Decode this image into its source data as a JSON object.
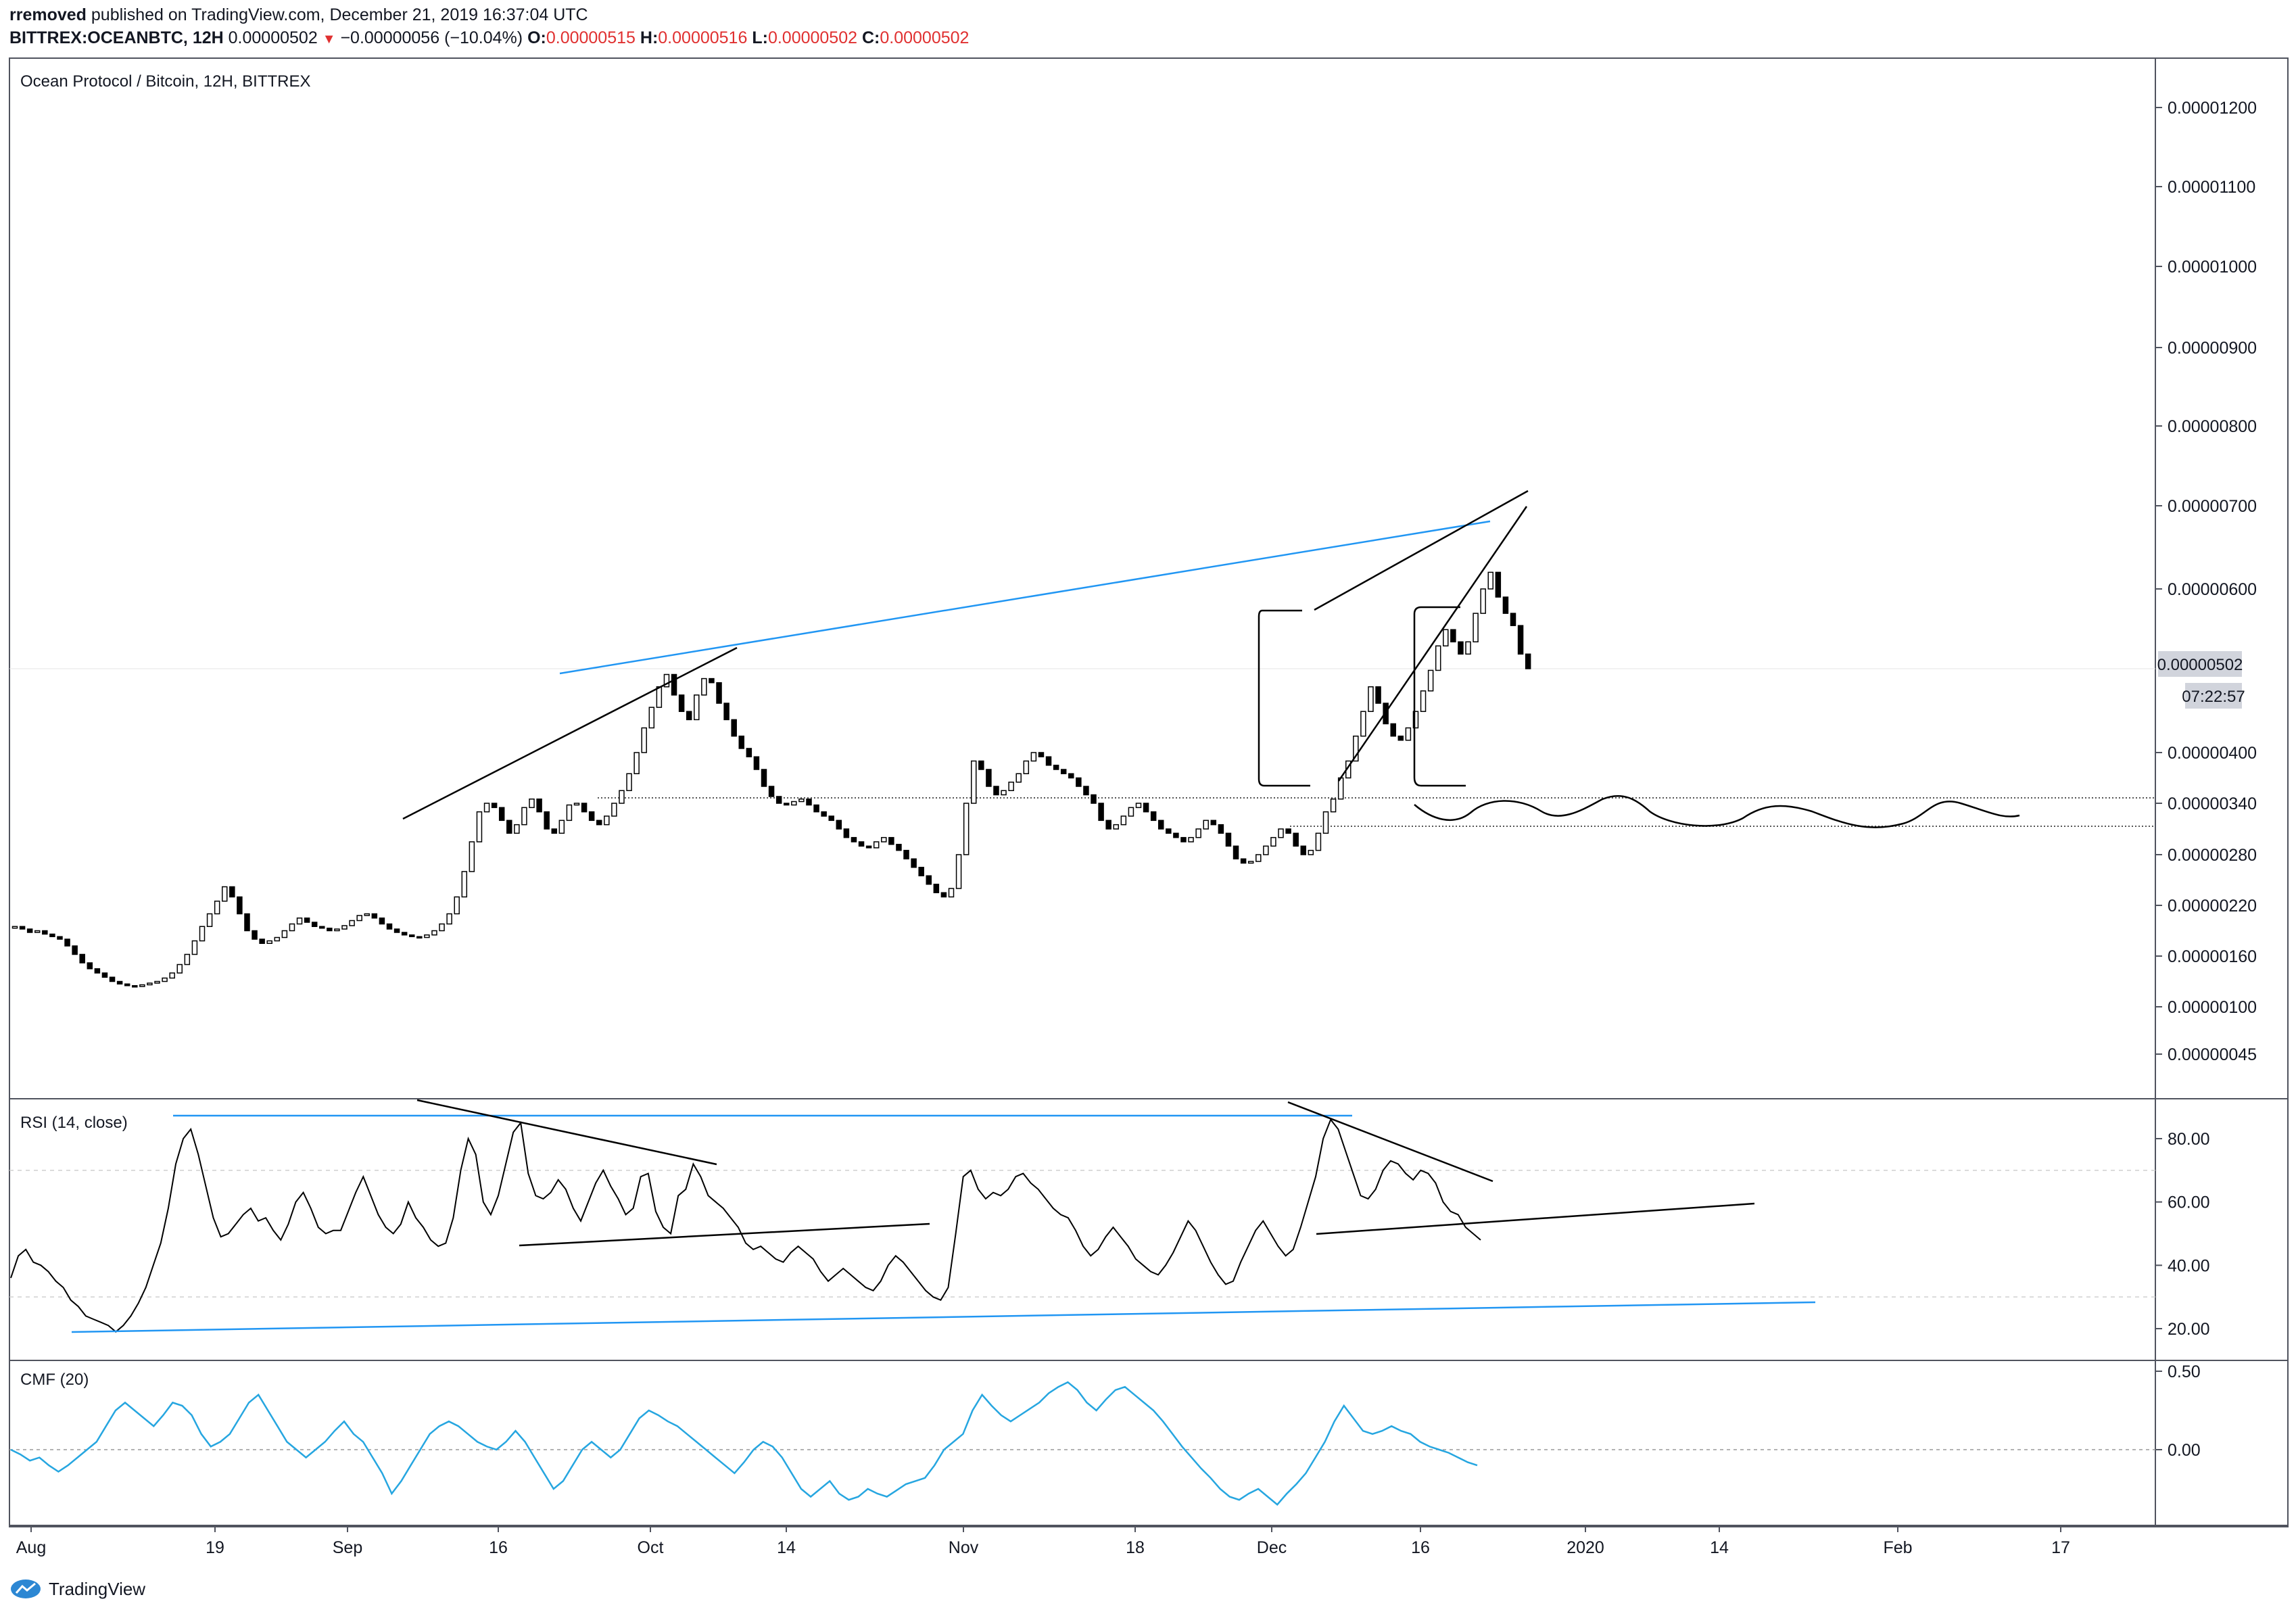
{
  "header": {
    "author": "rremoved",
    "published": "published on TradingView.com, December 21, 2019 16:37:04 UTC",
    "symbol": "BITTREX:OCEANBTC, 12H",
    "last": "0.00000502",
    "change": "−0.00000056 (−10.04%)",
    "o_label": "O:",
    "o_value": "0.00000515",
    "h_label": "H:",
    "h_value": "0.00000516",
    "l_label": "L:",
    "l_value": "0.00000502",
    "c_label": "C:",
    "c_value": "0.00000502"
  },
  "branding": {
    "name": "TradingView"
  },
  "colors": {
    "accent_line": "#2196f3",
    "cmf_line": "#26a6e0",
    "price_badge": "#d1d4dc",
    "change_down": "#e03030"
  },
  "chart_data": [
    {
      "type": "candlestick",
      "title": "Ocean Protocol / Bitcoin, 12H, BITTREX",
      "scale": "log",
      "y_ticks": [
        "0.00001200",
        "0.00001100",
        "0.00001000",
        "0.00000900",
        "0.00000800",
        "0.00000700",
        "0.00000600",
        "0.00000502",
        "0.00000400",
        "0.00000340",
        "0.00000280",
        "0.00000220",
        "0.00000160",
        "0.00000100",
        "0.00000045"
      ],
      "last_price": "0.00000502",
      "countdown": "07:22:57",
      "x_ticks": [
        "Aug",
        "19",
        "Sep",
        "16",
        "Oct",
        "14",
        "Nov",
        "18",
        "Dec",
        "16",
        "2020",
        "14",
        "Feb",
        "17"
      ],
      "close_series": [
        1.95,
        1.92,
        1.88,
        1.9,
        1.86,
        1.83,
        1.8,
        1.72,
        1.62,
        1.52,
        1.45,
        1.4,
        1.35,
        1.3,
        1.27,
        1.25,
        1.24,
        1.26,
        1.28,
        1.3,
        1.34,
        1.4,
        1.5,
        1.62,
        1.78,
        1.95,
        2.1,
        2.25,
        2.42,
        2.3,
        2.1,
        1.9,
        1.8,
        1.75,
        1.78,
        1.82,
        1.9,
        1.98,
        2.05,
        2.0,
        1.95,
        1.93,
        1.9,
        1.92,
        1.96,
        2.02,
        2.08,
        2.1,
        2.05,
        1.98,
        1.92,
        1.88,
        1.85,
        1.83,
        1.82,
        1.85,
        1.9,
        1.98,
        2.1,
        2.3,
        2.6,
        2.95,
        3.3,
        3.4,
        3.35,
        3.2,
        3.05,
        3.15,
        3.35,
        3.45,
        3.3,
        3.1,
        3.05,
        3.2,
        3.38,
        3.4,
        3.3,
        3.2,
        3.15,
        3.25,
        3.4,
        3.55,
        3.75,
        4.0,
        4.3,
        4.55,
        4.8,
        4.95,
        4.7,
        4.5,
        4.4,
        4.7,
        4.9,
        4.85,
        4.6,
        4.4,
        4.2,
        4.05,
        3.95,
        3.8,
        3.6,
        3.48,
        3.4,
        3.38,
        3.42,
        3.45,
        3.38,
        3.3,
        3.25,
        3.2,
        3.1,
        3.0,
        2.95,
        2.9,
        2.88,
        2.95,
        3.0,
        2.92,
        2.85,
        2.75,
        2.65,
        2.55,
        2.45,
        2.35,
        2.3,
        2.4,
        2.8,
        3.4,
        3.9,
        3.8,
        3.6,
        3.5,
        3.55,
        3.65,
        3.75,
        3.9,
        4.0,
        3.95,
        3.85,
        3.8,
        3.75,
        3.7,
        3.6,
        3.5,
        3.4,
        3.2,
        3.1,
        3.15,
        3.25,
        3.35,
        3.4,
        3.3,
        3.2,
        3.1,
        3.05,
        3.0,
        2.95,
        3.0,
        3.1,
        3.2,
        3.15,
        3.05,
        2.9,
        2.75,
        2.7,
        2.72,
        2.8,
        2.9,
        3.0,
        3.1,
        3.05,
        2.9,
        2.8,
        2.85,
        3.05,
        3.3,
        3.45,
        3.7,
        3.9,
        4.2,
        4.5,
        4.8,
        4.6,
        4.35,
        4.2,
        4.15,
        4.3,
        4.5,
        4.75,
        5.0,
        5.3,
        5.5,
        5.35,
        5.2,
        5.35,
        5.7,
        6.0,
        6.2,
        5.9,
        5.7,
        5.55,
        5.2,
        5.02
      ],
      "rsi": {
        "label": "RSI (14, close)",
        "y_ticks": [
          "80.00",
          "60.00",
          "40.00",
          "20.00"
        ],
        "overbought": 70,
        "oversold": 30,
        "values": [
          36,
          43,
          45,
          41,
          40,
          38,
          35,
          33,
          29,
          27,
          24,
          23,
          22,
          21,
          19,
          21,
          24,
          28,
          33,
          40,
          47,
          58,
          72,
          80,
          83,
          75,
          65,
          55,
          49,
          50,
          53,
          56,
          58,
          54,
          55,
          51,
          48,
          53,
          60,
          63,
          58,
          52,
          50,
          51,
          51,
          57,
          63,
          68,
          62,
          56,
          52,
          50,
          53,
          60,
          55,
          52,
          48,
          46,
          47,
          55,
          70,
          80,
          75,
          60,
          56,
          62,
          72,
          82,
          85,
          69,
          62,
          61,
          63,
          67,
          64,
          58,
          54,
          60,
          66,
          70,
          65,
          61,
          56,
          58,
          68,
          69,
          57,
          52,
          50,
          62,
          64,
          72,
          68,
          62,
          60,
          58,
          55,
          52,
          47,
          45,
          46,
          44,
          42,
          41,
          44,
          46,
          44,
          42,
          38,
          35,
          37,
          39,
          37,
          35,
          33,
          32,
          35,
          40,
          43,
          41,
          38,
          35,
          32,
          30,
          29,
          33,
          50,
          68,
          70,
          64,
          61,
          63,
          62,
          64,
          68,
          69,
          66,
          64,
          61,
          58,
          56,
          55,
          51,
          46,
          43,
          45,
          49,
          52,
          49,
          46,
          42,
          40,
          38,
          37,
          40,
          44,
          49,
          54,
          51,
          46,
          41,
          37,
          34,
          35,
          41,
          46,
          51,
          54,
          50,
          46,
          43,
          45,
          52,
          60,
          68,
          80,
          86,
          83,
          76,
          69,
          62,
          61,
          64,
          70,
          73,
          72,
          69,
          67,
          70,
          69,
          66,
          60,
          57,
          56,
          52,
          50,
          48
        ]
      },
      "cmf": {
        "label": "CMF (20)",
        "y_ticks": [
          "0.50",
          "0.00"
        ],
        "values": [
          0.0,
          -0.03,
          -0.07,
          -0.05,
          -0.1,
          -0.14,
          -0.1,
          -0.05,
          0.0,
          0.05,
          0.15,
          0.25,
          0.3,
          0.25,
          0.2,
          0.15,
          0.22,
          0.3,
          0.28,
          0.22,
          0.1,
          0.02,
          0.05,
          0.1,
          0.2,
          0.3,
          0.35,
          0.25,
          0.15,
          0.05,
          0.0,
          -0.05,
          0.0,
          0.05,
          0.12,
          0.18,
          0.1,
          0.05,
          -0.05,
          -0.15,
          -0.28,
          -0.2,
          -0.1,
          0.0,
          0.1,
          0.15,
          0.18,
          0.15,
          0.1,
          0.05,
          0.02,
          0.0,
          0.05,
          0.12,
          0.05,
          -0.05,
          -0.15,
          -0.25,
          -0.2,
          -0.1,
          0.0,
          0.05,
          0.0,
          -0.05,
          0.0,
          0.1,
          0.2,
          0.25,
          0.22,
          0.18,
          0.15,
          0.1,
          0.05,
          0.0,
          -0.05,
          -0.1,
          -0.15,
          -0.08,
          0.0,
          0.05,
          0.02,
          -0.05,
          -0.15,
          -0.25,
          -0.3,
          -0.25,
          -0.2,
          -0.28,
          -0.32,
          -0.3,
          -0.25,
          -0.28,
          -0.3,
          -0.26,
          -0.22,
          -0.2,
          -0.18,
          -0.1,
          0.0,
          0.05,
          0.1,
          0.25,
          0.35,
          0.28,
          0.22,
          0.18,
          0.22,
          0.26,
          0.3,
          0.36,
          0.4,
          0.43,
          0.38,
          0.3,
          0.25,
          0.32,
          0.38,
          0.4,
          0.35,
          0.3,
          0.25,
          0.18,
          0.1,
          0.02,
          -0.05,
          -0.12,
          -0.18,
          -0.25,
          -0.3,
          -0.32,
          -0.28,
          -0.25,
          -0.3,
          -0.35,
          -0.28,
          -0.22,
          -0.15,
          -0.05,
          0.05,
          0.18,
          0.28,
          0.2,
          0.12,
          0.1,
          0.12,
          0.15,
          0.12,
          0.1,
          0.05,
          0.02,
          0.0,
          -0.02,
          -0.05,
          -0.08,
          -0.1
        ]
      }
    }
  ]
}
